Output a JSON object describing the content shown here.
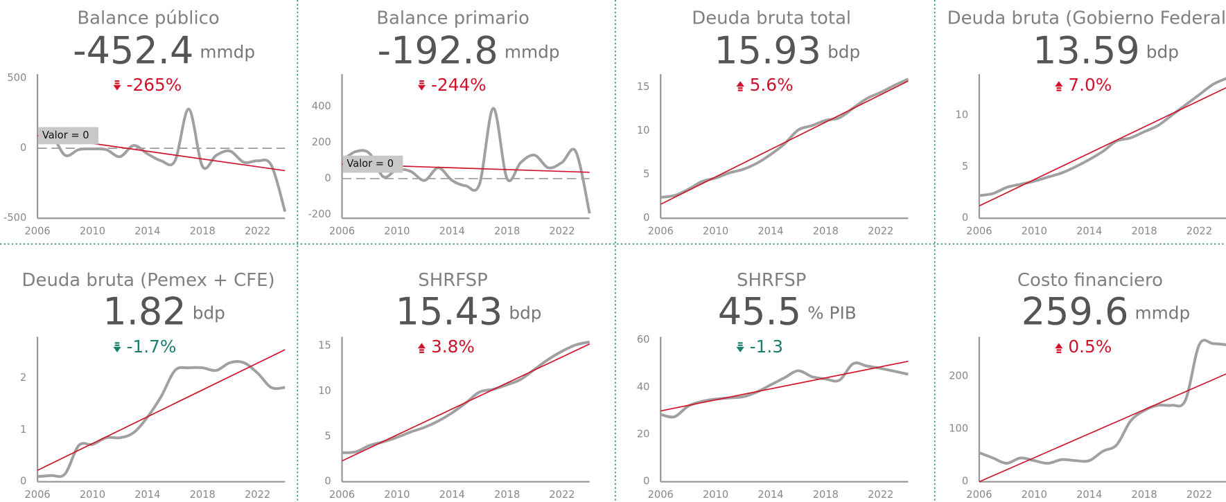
{
  "chart_data": [
    {
      "type": "line",
      "title": "Balance público",
      "value": -452.4,
      "unit": "mmdp",
      "change": "-265%",
      "direction": "down",
      "change_color": "#d0122c",
      "x": [
        2006,
        2007,
        2008,
        2009,
        2010,
        2011,
        2012,
        2013,
        2014,
        2015,
        2016,
        2017,
        2018,
        2019,
        2020,
        2021,
        2022,
        2023,
        2024
      ],
      "xlim": [
        2006,
        2024
      ],
      "xticks": [
        2006,
        2010,
        2014,
        2018,
        2022
      ],
      "ylim": [
        -500,
        530
      ],
      "yticks": [
        -500,
        0,
        500
      ],
      "series": [
        {
          "color": "#a0a0a0",
          "values": [
            90,
            100,
            -50,
            -10,
            -5,
            -10,
            -60,
            20,
            -40,
            -90,
            -90,
            280,
            -130,
            -50,
            -20,
            -100,
            -90,
            -120,
            -452.4
          ]
        }
      ],
      "trend": {
        "color": "#d0122c",
        "x": [
          2006,
          2024
        ],
        "values": [
          90,
          -160
        ]
      },
      "reference": {
        "value": 0,
        "label": "Valor = 0"
      }
    },
    {
      "type": "line",
      "title": "Balance primario",
      "value": -192.8,
      "unit": "mmdp",
      "change": "-244%",
      "direction": "down",
      "change_color": "#d0122c",
      "x": [
        2006,
        2007,
        2008,
        2009,
        2010,
        2011,
        2012,
        2013,
        2014,
        2015,
        2016,
        2017,
        2018,
        2019,
        2020,
        2021,
        2022,
        2023,
        2024
      ],
      "xlim": [
        2006,
        2024
      ],
      "xticks": [
        2006,
        2010,
        2014,
        2018,
        2022
      ],
      "ylim": [
        -220,
        580
      ],
      "yticks": [
        -200,
        0,
        200,
        400
      ],
      "series": [
        {
          "color": "#a0a0a0",
          "values": [
            100,
            150,
            140,
            10,
            50,
            40,
            -10,
            60,
            -10,
            -40,
            -30,
            390,
            0,
            90,
            130,
            60,
            90,
            150,
            -192.8
          ]
        }
      ],
      "trend": {
        "color": "#d0122c",
        "x": [
          2006,
          2024
        ],
        "values": [
          80,
          35
        ]
      },
      "reference": {
        "value": 0,
        "label": "Valor = 0"
      }
    },
    {
      "type": "line",
      "title": "Deuda bruta total",
      "value": 15.93,
      "unit": "bdp",
      "change": "5.6%",
      "direction": "up",
      "change_color": "#d0122c",
      "x": [
        2006,
        2007,
        2008,
        2009,
        2010,
        2011,
        2012,
        2013,
        2014,
        2015,
        2016,
        2017,
        2018,
        2019,
        2020,
        2021,
        2022,
        2023,
        2024
      ],
      "xlim": [
        2006,
        2024
      ],
      "xticks": [
        2006,
        2010,
        2014,
        2018,
        2022
      ],
      "ylim": [
        0,
        16.5
      ],
      "yticks": [
        0,
        5,
        10,
        15
      ],
      "series": [
        {
          "color": "#a0a0a0",
          "values": [
            2.4,
            2.6,
            3.3,
            4.2,
            4.6,
            5.2,
            5.6,
            6.3,
            7.3,
            8.5,
            10.1,
            10.6,
            11.2,
            11.5,
            12.6,
            13.7,
            14.4,
            15.2,
            15.93
          ]
        }
      ],
      "trend": {
        "color": "#d0122c",
        "x": [
          2006,
          2024
        ],
        "values": [
          1.6,
          15.7
        ]
      }
    },
    {
      "type": "line",
      "title": "Deuda bruta (Gobierno Federal)",
      "value": 13.59,
      "unit": "bdp",
      "change": "7.0%",
      "direction": "up",
      "change_color": "#d0122c",
      "x": [
        2006,
        2007,
        2008,
        2009,
        2010,
        2011,
        2012,
        2013,
        2014,
        2015,
        2016,
        2017,
        2018,
        2019,
        2020,
        2021,
        2022,
        2023,
        2024
      ],
      "xlim": [
        2006,
        2024
      ],
      "xticks": [
        2006,
        2010,
        2014,
        2018,
        2022
      ],
      "ylim": [
        0,
        14
      ],
      "yticks": [
        0,
        5,
        10
      ],
      "series": [
        {
          "color": "#a0a0a0",
          "values": [
            2.2,
            2.4,
            3.0,
            3.3,
            3.6,
            4.0,
            4.4,
            5.0,
            5.7,
            6.5,
            7.5,
            7.8,
            8.4,
            9.0,
            10.0,
            11.0,
            12.0,
            13.0,
            13.59
          ]
        }
      ],
      "trend": {
        "color": "#d0122c",
        "x": [
          2006,
          2024
        ],
        "values": [
          1.2,
          12.7
        ]
      }
    },
    {
      "type": "line",
      "title": "Deuda bruta (Pemex + CFE)",
      "value": 1.82,
      "unit": "bdp",
      "change": "-1.7%",
      "direction": "down",
      "change_color": "#1a7f6e",
      "x": [
        2006,
        2007,
        2008,
        2009,
        2010,
        2011,
        2012,
        2013,
        2014,
        2015,
        2016,
        2017,
        2018,
        2019,
        2020,
        2021,
        2022,
        2023,
        2024
      ],
      "xlim": [
        2006,
        2024
      ],
      "xticks": [
        2006,
        2010,
        2014,
        2018,
        2022
      ],
      "ylim": [
        0,
        2.8
      ],
      "yticks": [
        0,
        1,
        2
      ],
      "series": [
        {
          "color": "#a0a0a0",
          "values": [
            0.1,
            0.12,
            0.15,
            0.7,
            0.72,
            0.85,
            0.85,
            0.95,
            1.25,
            1.65,
            2.15,
            2.2,
            2.2,
            2.15,
            2.3,
            2.3,
            2.1,
            1.82,
            1.82
          ]
        }
      ],
      "trend": {
        "color": "#d0122c",
        "x": [
          2006,
          2024
        ],
        "values": [
          0.22,
          2.55
        ]
      }
    },
    {
      "type": "line",
      "title": "SHRFSP",
      "value": 15.43,
      "unit": "bdp",
      "change": "3.8%",
      "direction": "up",
      "change_color": "#d0122c",
      "x": [
        2006,
        2007,
        2008,
        2009,
        2010,
        2011,
        2012,
        2013,
        2014,
        2015,
        2016,
        2017,
        2018,
        2019,
        2020,
        2021,
        2022,
        2023,
        2024
      ],
      "xlim": [
        2006,
        2024
      ],
      "xticks": [
        2006,
        2010,
        2014,
        2018,
        2022
      ],
      "ylim": [
        0,
        16
      ],
      "yticks": [
        0,
        5,
        10,
        15
      ],
      "series": [
        {
          "color": "#a0a0a0",
          "values": [
            3.2,
            3.3,
            4.0,
            4.4,
            4.9,
            5.5,
            6.0,
            6.7,
            7.6,
            8.7,
            9.9,
            10.2,
            10.7,
            11.3,
            12.4,
            13.5,
            14.4,
            15.1,
            15.43
          ]
        }
      ],
      "trend": {
        "color": "#d0122c",
        "x": [
          2006,
          2024
        ],
        "values": [
          2.3,
          15.2
        ]
      }
    },
    {
      "type": "line",
      "title": "SHRFSP",
      "value": 45.5,
      "unit": "% PIB",
      "change": "-1.3",
      "direction": "down",
      "change_color": "#1a7f6e",
      "x": [
        2006,
        2007,
        2008,
        2009,
        2010,
        2011,
        2012,
        2013,
        2014,
        2015,
        2016,
        2017,
        2018,
        2019,
        2020,
        2021,
        2022,
        2023,
        2024
      ],
      "xlim": [
        2006,
        2024
      ],
      "xticks": [
        2006,
        2010,
        2014,
        2018,
        2022
      ],
      "ylim": [
        0,
        61.4
      ],
      "yticks": [
        0,
        20,
        40,
        60
      ],
      "series": [
        {
          "color": "#a0a0a0",
          "values": [
            28.5,
            27.5,
            32,
            34,
            35,
            35.5,
            36,
            38,
            41,
            44,
            47,
            44.5,
            43.5,
            43,
            50,
            49,
            48,
            46.8,
            45.5
          ]
        }
      ],
      "trend": {
        "color": "#d0122c",
        "x": [
          2006,
          2024
        ],
        "values": [
          30,
          51
        ]
      }
    },
    {
      "type": "line",
      "title": "Costo financiero",
      "value": 259.6,
      "unit": "mmdp",
      "change": "0.5%",
      "direction": "up",
      "change_color": "#d0122c",
      "x": [
        2006,
        2007,
        2008,
        2009,
        2010,
        2011,
        2012,
        2013,
        2014,
        2015,
        2016,
        2017,
        2018,
        2019,
        2020,
        2021,
        2022,
        2023,
        2024
      ],
      "xlim": [
        2006,
        2024
      ],
      "xticks": [
        2006,
        2010,
        2014,
        2018,
        2022
      ],
      "ylim": [
        0,
        275
      ],
      "yticks": [
        0,
        100,
        200
      ],
      "series": [
        {
          "color": "#a0a0a0",
          "values": [
            55,
            45,
            35,
            45,
            40,
            35,
            42,
            40,
            40,
            58,
            70,
            115,
            135,
            145,
            145,
            155,
            260,
            262,
            259.6
          ]
        }
      ],
      "trend": {
        "color": "#d0122c",
        "x": [
          2006,
          2024
        ],
        "values": [
          0,
          205
        ]
      }
    }
  ]
}
